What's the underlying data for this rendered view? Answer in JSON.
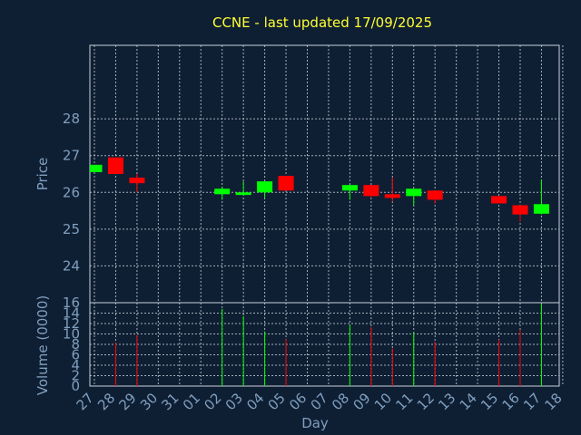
{
  "chart_data": {
    "type": "candlestick",
    "title": "CCNE - last updated 17/09/2025",
    "xlabel": "Day",
    "price_axis": {
      "label": "Price",
      "ticks": [
        24,
        25,
        26,
        27,
        28
      ],
      "range": [
        23.0,
        30.0
      ]
    },
    "volume_axis": {
      "label": "Volume (0000)",
      "ticks": [
        0,
        2,
        4,
        6,
        8,
        10,
        12,
        14,
        16
      ],
      "range": [
        0,
        16
      ]
    },
    "grid": true,
    "x_ticks": [
      "27",
      "28",
      "29",
      "30",
      "31",
      "01",
      "02",
      "03",
      "04",
      "05",
      "06",
      "07",
      "08",
      "09",
      "10",
      "11",
      "12",
      "13",
      "14",
      "15",
      "16",
      "17",
      "18"
    ],
    "candles": [
      {
        "day": "27",
        "open": 26.55,
        "close": 26.75,
        "high": 26.75,
        "low": 26.55,
        "volume": 0
      },
      {
        "day": "28",
        "open": 26.95,
        "close": 26.5,
        "high": 26.95,
        "low": 26.5,
        "volume": 8.3
      },
      {
        "day": "29",
        "open": 26.4,
        "close": 26.25,
        "high": 26.5,
        "low": 26.0,
        "volume": 9.8
      },
      {
        "day": "02",
        "open": 25.95,
        "close": 26.1,
        "high": 26.15,
        "low": 25.8,
        "volume": 14.8
      },
      {
        "day": "03",
        "open": 25.93,
        "close": 26.0,
        "high": 26.3,
        "low": 25.93,
        "volume": 13.4
      },
      {
        "day": "04",
        "open": 26.0,
        "close": 26.3,
        "high": 26.3,
        "low": 25.85,
        "volume": 10.5
      },
      {
        "day": "05",
        "open": 26.45,
        "close": 26.05,
        "high": 26.45,
        "low": 26.05,
        "volume": 9.0
      },
      {
        "day": "08",
        "open": 26.05,
        "close": 26.2,
        "high": 26.2,
        "low": 25.8,
        "volume": 11.8
      },
      {
        "day": "09",
        "open": 26.2,
        "close": 25.9,
        "high": 26.2,
        "low": 25.85,
        "volume": 11.3
      },
      {
        "day": "10",
        "open": 25.95,
        "close": 25.85,
        "high": 26.4,
        "low": 25.75,
        "volume": 7.2
      },
      {
        "day": "11",
        "open": 25.9,
        "close": 26.1,
        "high": 26.1,
        "low": 25.65,
        "volume": 10.3
      },
      {
        "day": "12",
        "open": 26.05,
        "close": 25.8,
        "high": 26.05,
        "low": 25.7,
        "volume": 8.5
      },
      {
        "day": "15",
        "open": 25.9,
        "close": 25.7,
        "high": 25.9,
        "low": 25.7,
        "volume": 8.9
      },
      {
        "day": "16",
        "open": 25.65,
        "close": 25.4,
        "high": 25.65,
        "low": 25.2,
        "volume": 10.8
      },
      {
        "day": "17",
        "open": 25.42,
        "close": 25.68,
        "high": 26.35,
        "low": 25.4,
        "volume": 15.8
      }
    ],
    "colors": {
      "up": "#00ff00",
      "down": "#ff0000",
      "title": "#ffff33",
      "axis_text": "#7f9fbf",
      "background": "#0f1f33"
    }
  }
}
